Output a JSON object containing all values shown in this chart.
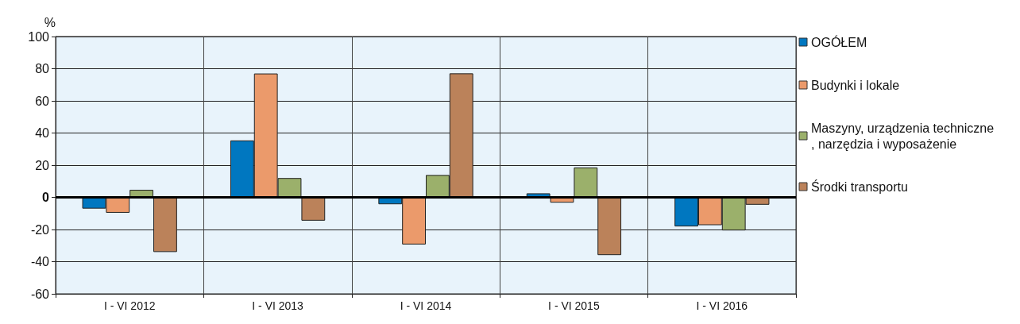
{
  "chart_data": {
    "type": "bar",
    "ylabel": "%",
    "categories": [
      "I - VI 2012",
      "I - VI 2013",
      "I - VI 2014",
      "I - VI 2015",
      "I - VI 2016"
    ],
    "series": [
      {
        "name": "OGÓŁEM",
        "color": "#0077c0",
        "values": [
          -7,
          35.4,
          -4.3,
          2.5,
          -18.1
        ]
      },
      {
        "name": "Budynki i lokale",
        "color": "#eb9a6b",
        "values": [
          -9.6,
          77,
          -29.3,
          -3.3,
          -17.3
        ]
      },
      {
        "name": "Maszyny, urządzenia techniczne, narzędzia i wyposażenie",
        "color": "#9bb06b",
        "values": [
          4.7,
          12,
          13.9,
          18.6,
          -20.6
        ]
      },
      {
        "name": "Środki transportu",
        "color": "#bb825a",
        "values": [
          -34,
          -14.5,
          77.1,
          -35.9,
          -4.6
        ]
      }
    ],
    "ylim": [
      -60,
      100
    ],
    "yticks": [
      -60,
      -40,
      -20,
      0,
      20,
      40,
      60,
      80,
      100
    ],
    "grid": true,
    "legend": "right"
  }
}
